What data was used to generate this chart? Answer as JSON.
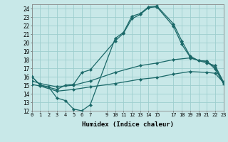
{
  "xlabel": "Humidex (Indice chaleur)",
  "xlim": [
    0,
    23
  ],
  "ylim": [
    12,
    24.5
  ],
  "xticks": [
    0,
    1,
    2,
    3,
    4,
    5,
    6,
    7,
    9,
    10,
    11,
    12,
    13,
    14,
    15,
    17,
    18,
    19,
    20,
    21,
    22,
    23
  ],
  "yticks": [
    12,
    13,
    14,
    15,
    16,
    17,
    18,
    19,
    20,
    21,
    22,
    23,
    24
  ],
  "bg_color": "#c8e8e8",
  "grid_color": "#9ecece",
  "line_color": "#1a6868",
  "line1_x": [
    0,
    1,
    2,
    3,
    4,
    5,
    6,
    7,
    10,
    11,
    12,
    13,
    14,
    15,
    17,
    18,
    19,
    20,
    21,
    22,
    23
  ],
  "line1_y": [
    16.0,
    15.0,
    14.8,
    13.5,
    13.2,
    12.2,
    12.0,
    12.7,
    20.5,
    21.2,
    23.1,
    23.4,
    24.2,
    24.3,
    22.2,
    20.2,
    18.4,
    17.9,
    17.8,
    17.1,
    15.3
  ],
  "line2_x": [
    0,
    1,
    3,
    4,
    5,
    6,
    7,
    10,
    11,
    12,
    13,
    14,
    15,
    17,
    18,
    19,
    20,
    21,
    22,
    23
  ],
  "line2_y": [
    16.0,
    15.0,
    14.5,
    15.0,
    15.1,
    16.5,
    16.8,
    20.2,
    21.1,
    22.8,
    23.3,
    24.1,
    24.2,
    21.9,
    19.8,
    18.3,
    17.9,
    17.8,
    16.9,
    15.2
  ],
  "line3_x": [
    0,
    1,
    3,
    5,
    7,
    10,
    13,
    15,
    17,
    19,
    21,
    22,
    23
  ],
  "line3_y": [
    15.5,
    15.2,
    14.8,
    15.0,
    15.5,
    16.5,
    17.3,
    17.6,
    18.0,
    18.2,
    17.6,
    17.3,
    15.4
  ],
  "line4_x": [
    0,
    1,
    3,
    5,
    7,
    10,
    13,
    15,
    17,
    19,
    21,
    22,
    23
  ],
  "line4_y": [
    15.1,
    14.9,
    14.3,
    14.5,
    14.8,
    15.2,
    15.7,
    15.9,
    16.3,
    16.6,
    16.5,
    16.4,
    15.3
  ]
}
